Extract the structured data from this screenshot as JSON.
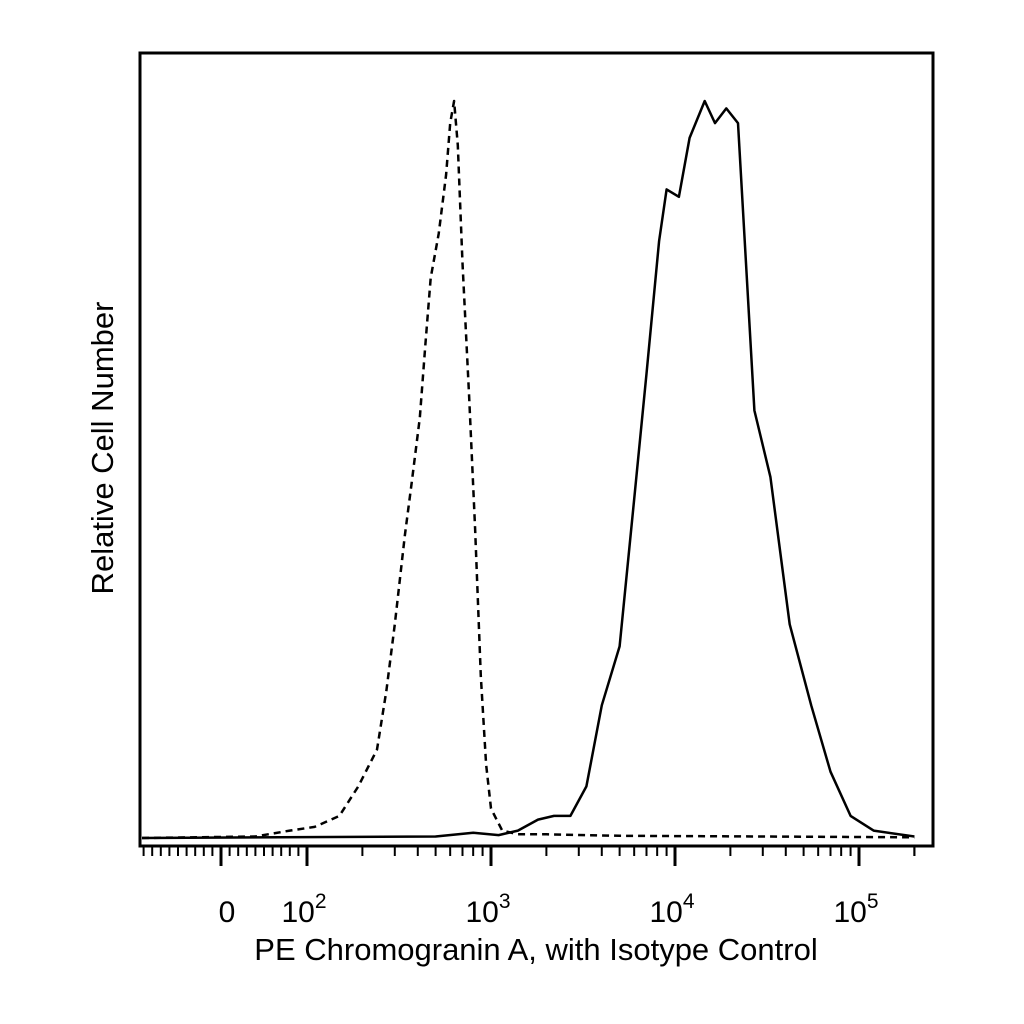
{
  "chart_data": {
    "type": "line",
    "title": "",
    "xlabel": "PE Chromogranin A, with Isotype Control",
    "ylabel": "Relative Cell Number",
    "x_scale": "biexponential (linear near 0, log10 above)",
    "xlim": [
      -200,
      250000
    ],
    "ylim": [
      0,
      1
    ],
    "x_ticks": [
      {
        "value": 0,
        "base": "0",
        "exp": ""
      },
      {
        "value": 100,
        "base": "10",
        "exp": "2"
      },
      {
        "value": 1000,
        "base": "10",
        "exp": "3"
      },
      {
        "value": 10000,
        "base": "10",
        "exp": "4"
      },
      {
        "value": 100000,
        "base": "10",
        "exp": "5"
      }
    ],
    "legend": "none",
    "grid": false,
    "series": [
      {
        "style": "dashed",
        "color": "#000000",
        "points": [
          [
            -200,
            0
          ],
          [
            40,
            0.002
          ],
          [
            80,
            0.01
          ],
          [
            110,
            0.015
          ],
          [
            150,
            0.03
          ],
          [
            190,
            0.07
          ],
          [
            240,
            0.12
          ],
          [
            270,
            0.2
          ],
          [
            300,
            0.29
          ],
          [
            340,
            0.41
          ],
          [
            370,
            0.48
          ],
          [
            410,
            0.57
          ],
          [
            440,
            0.67
          ],
          [
            470,
            0.76
          ],
          [
            520,
            0.82
          ],
          [
            570,
            0.9
          ],
          [
            600,
            0.97
          ],
          [
            630,
            1.0
          ],
          [
            660,
            0.94
          ],
          [
            700,
            0.78
          ],
          [
            760,
            0.6
          ],
          [
            820,
            0.42
          ],
          [
            880,
            0.22
          ],
          [
            940,
            0.1
          ],
          [
            1000,
            0.04
          ],
          [
            1150,
            0.01
          ],
          [
            1400,
            0.005
          ],
          [
            2000,
            0.005
          ],
          [
            5000,
            0.003
          ],
          [
            30000,
            0.002
          ],
          [
            200000,
            0.001
          ]
        ]
      },
      {
        "style": "solid",
        "color": "#000000",
        "points": [
          [
            -200,
            0
          ],
          [
            500,
            0.002
          ],
          [
            800,
            0.007
          ],
          [
            1100,
            0.004
          ],
          [
            1400,
            0.01
          ],
          [
            1800,
            0.025
          ],
          [
            2200,
            0.03
          ],
          [
            2700,
            0.03
          ],
          [
            3300,
            0.07
          ],
          [
            4000,
            0.18
          ],
          [
            5000,
            0.26
          ],
          [
            6000,
            0.46
          ],
          [
            7000,
            0.63
          ],
          [
            8200,
            0.81
          ],
          [
            9000,
            0.88
          ],
          [
            10500,
            0.87
          ],
          [
            12000,
            0.95
          ],
          [
            14500,
            1.0
          ],
          [
            16500,
            0.97
          ],
          [
            19000,
            0.99
          ],
          [
            22000,
            0.97
          ],
          [
            27000,
            0.58
          ],
          [
            33000,
            0.49
          ],
          [
            42000,
            0.29
          ],
          [
            55000,
            0.18
          ],
          [
            70000,
            0.09
          ],
          [
            90000,
            0.03
          ],
          [
            120000,
            0.01
          ],
          [
            200000,
            0.002
          ]
        ]
      }
    ]
  }
}
